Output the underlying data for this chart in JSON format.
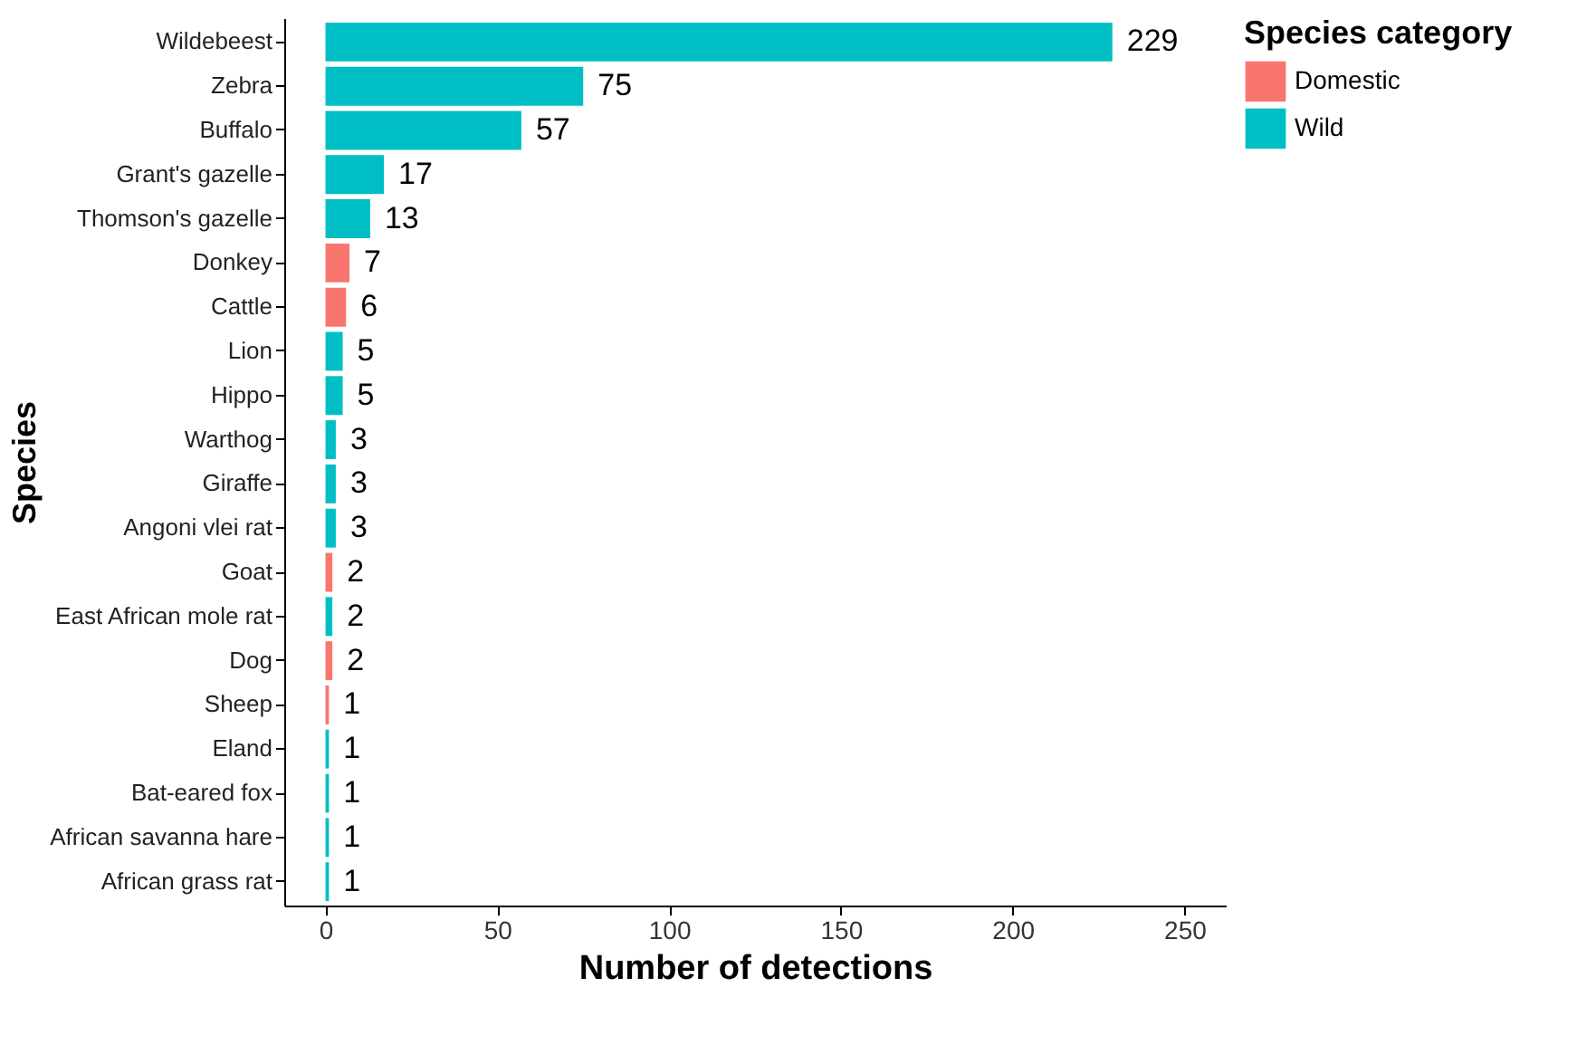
{
  "chart_data": {
    "type": "bar",
    "orientation": "horizontal",
    "xlabel": "Number of detections",
    "ylabel": "Species",
    "legend_title": "Species category",
    "legend": "right",
    "categories": [
      "Wildebeest",
      "Zebra",
      "Buffalo",
      "Grant's gazelle",
      "Thomson's gazelle",
      "Donkey",
      "Cattle",
      "Lion",
      "Hippo",
      "Warthog",
      "Giraffe",
      "Angoni vlei rat",
      "Goat",
      "East African mole rat",
      "Dog",
      "Sheep",
      "Eland",
      "Bat-eared fox",
      "African savanna hare",
      "African grass rat"
    ],
    "series": [
      {
        "name": "Domestic",
        "color": "#f8766d",
        "values": [
          null,
          null,
          null,
          null,
          null,
          7,
          6,
          null,
          null,
          null,
          null,
          null,
          2,
          null,
          2,
          1,
          null,
          null,
          null,
          null
        ]
      },
      {
        "name": "Wild",
        "color": "#00bfc4",
        "values": [
          229,
          75,
          57,
          17,
          13,
          null,
          null,
          5,
          5,
          3,
          3,
          3,
          null,
          2,
          null,
          null,
          1,
          1,
          1,
          1
        ]
      }
    ],
    "xlim": [
      -12,
      262
    ],
    "xticks": [
      0,
      50,
      100,
      150,
      200,
      250
    ],
    "grid": false,
    "data_labels": true
  }
}
